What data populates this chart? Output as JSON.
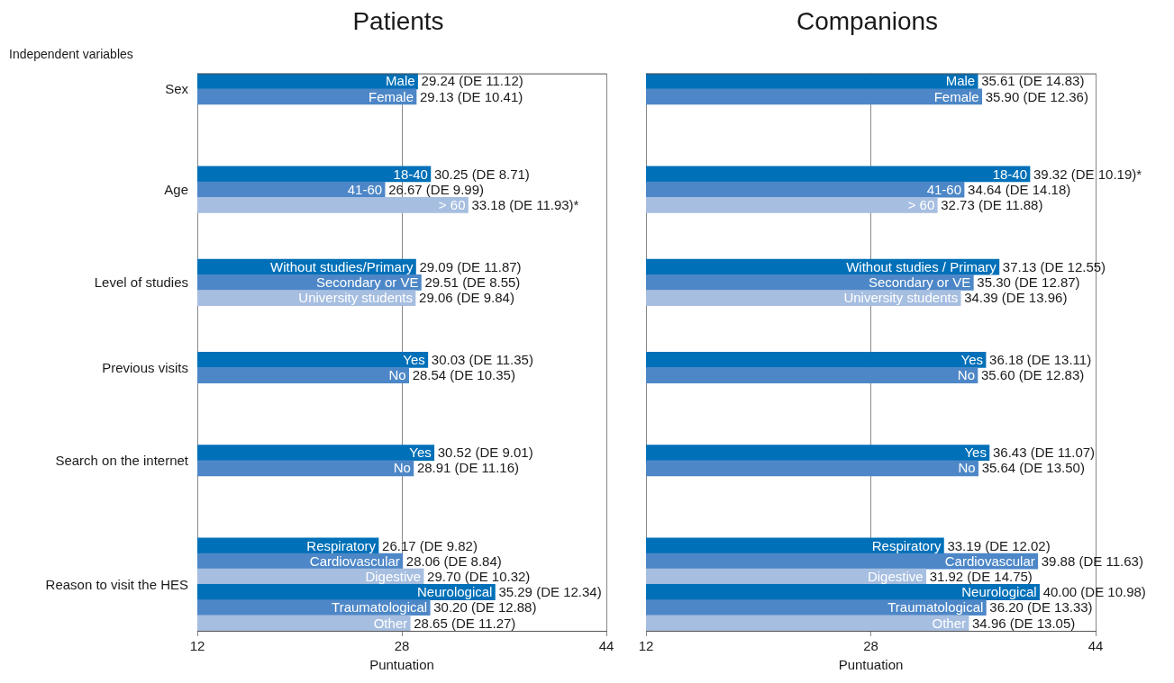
{
  "chart_data": [
    {
      "type": "bar",
      "orientation": "horizontal",
      "title": "Patients",
      "ylabel": "Independent variables",
      "xlabel": "Puntuation",
      "categories": [
        "Male",
        "Female",
        null,
        null,
        null,
        null,
        "18-40",
        "41-60",
        "> 60",
        null,
        null,
        null,
        "Without studies/Primary",
        "Secondary or VE",
        "University students",
        null,
        null,
        null,
        "Yes",
        "No",
        null,
        null,
        null,
        null,
        "Yes",
        "No",
        null,
        null,
        null,
        null,
        "Respiratory",
        "Cardiovascular",
        "Digestive",
        "Neurological",
        "Traumatological",
        "Other"
      ],
      "values": [
        29.24,
        29.13,
        null,
        null,
        null,
        null,
        30.25,
        26.67,
        33.18,
        null,
        null,
        null,
        29.09,
        29.51,
        29.06,
        null,
        null,
        null,
        30.03,
        28.54,
        null,
        null,
        null,
        null,
        30.52,
        28.91,
        null,
        null,
        null,
        null,
        26.17,
        28.06,
        29.7,
        35.29,
        30.2,
        28.65
      ],
      "colors": [
        "#0070b8",
        "#4d87c7",
        null,
        null,
        null,
        null,
        "#0070b8",
        "#4d87c7",
        "#a6bee0",
        null,
        null,
        null,
        "#0070b8",
        "#4d87c7",
        "#a6bee0",
        null,
        null,
        null,
        "#0070b8",
        "#4d87c7",
        null,
        null,
        null,
        null,
        "#0070b8",
        "#4d87c7",
        null,
        null,
        null,
        null,
        "#0070b8",
        "#4d87c7",
        "#a6bee0",
        "#0070b8",
        "#4d87c7",
        "#a6bee0"
      ],
      "value_labels": [
        "29.24 (DE 11.12)",
        "29.13 (DE 10.41)",
        null,
        null,
        null,
        null,
        "30.25 (DE 8.71)",
        "26.67 (DE 9.99)",
        "33.18 (DE 11.93)*",
        null,
        null,
        null,
        "29.09 (DE 11.87)",
        "29.51 (DE 8.55)",
        "29.06 (DE 9.84)",
        null,
        null,
        null,
        "30.03 (DE 11.35)",
        "28.54 (DE 10.35)",
        null,
        null,
        null,
        null,
        "30.52 (DE 9.01)",
        "28.91 (DE 11.16)",
        null,
        null,
        null,
        null,
        "26.17 (DE 9.82)",
        "28.06 (DE 8.84)",
        "29.70 (DE 10.32)",
        "35.29 (DE 12.34)",
        "30.20 (DE 12.88)",
        "28.65 (DE 11.27)"
      ],
      "annotations": [
        "Sex",
        "Age",
        "Level of studies",
        "Previous visits",
        "Search on the internet",
        "Reason to visit the HES"
      ],
      "xlim": [
        12,
        44
      ],
      "xticks": [
        12,
        28,
        44
      ],
      "grid": "x",
      "tick_labels": "x"
    },
    {
      "type": "bar",
      "orientation": "horizontal",
      "title": "Companions",
      "xlabel": "Puntuation",
      "categories": [
        "Male",
        "Female",
        null,
        null,
        null,
        null,
        "18-40",
        "41-60",
        "> 60",
        null,
        null,
        null,
        "Without studies / Primary",
        "Secondary or VE",
        "University students",
        null,
        null,
        null,
        "Yes",
        "No",
        null,
        null,
        null,
        null,
        "Yes",
        "No",
        null,
        null,
        null,
        null,
        "Respiratory",
        "Cardiovascular",
        "Digestive",
        "Neurological",
        "Traumatological",
        "Other"
      ],
      "values": [
        35.61,
        35.9,
        null,
        null,
        null,
        null,
        39.32,
        34.64,
        32.73,
        null,
        null,
        null,
        37.13,
        35.3,
        34.39,
        null,
        null,
        null,
        36.18,
        35.6,
        null,
        null,
        null,
        null,
        36.43,
        35.64,
        null,
        null,
        null,
        null,
        33.19,
        39.88,
        31.92,
        40.0,
        36.2,
        34.96
      ],
      "colors": [
        "#0070b8",
        "#4d87c7",
        null,
        null,
        null,
        null,
        "#0070b8",
        "#4d87c7",
        "#a6bee0",
        null,
        null,
        null,
        "#0070b8",
        "#4d87c7",
        "#a6bee0",
        null,
        null,
        null,
        "#0070b8",
        "#4d87c7",
        null,
        null,
        null,
        null,
        "#0070b8",
        "#4d87c7",
        null,
        null,
        null,
        null,
        "#0070b8",
        "#4d87c7",
        "#a6bee0",
        "#0070b8",
        "#4d87c7",
        "#a6bee0"
      ],
      "value_labels": [
        "35.61 (DE 14.83)",
        "35.90 (DE 12.36)",
        null,
        null,
        null,
        null,
        "39.32 (DE 10.19)*",
        "34.64 (DE 14.18)",
        "32.73 (DE 11.88)",
        null,
        null,
        null,
        "37.13 (DE 12.55)",
        "35.30 (DE 12.87)",
        "34.39 (DE 13.96)",
        null,
        null,
        null,
        "36.18 (DE 13.11)",
        "35.60 (DE 12.83)",
        null,
        null,
        null,
        null,
        "36.43 (DE 11.07)",
        "35.64 (DE 13.50)",
        null,
        null,
        null,
        null,
        "33.19 (DE 12.02)",
        "39.88 (DE 11.63)",
        "31.92 (DE 14.75)",
        "40.00 (DE 10.98)",
        "36.20 (DE 13.33)",
        "34.96 (DE 13.05)"
      ],
      "xlim": [
        12,
        44
      ],
      "xticks": [
        12,
        28,
        44
      ],
      "grid": "x",
      "tick_labels": "x"
    }
  ]
}
